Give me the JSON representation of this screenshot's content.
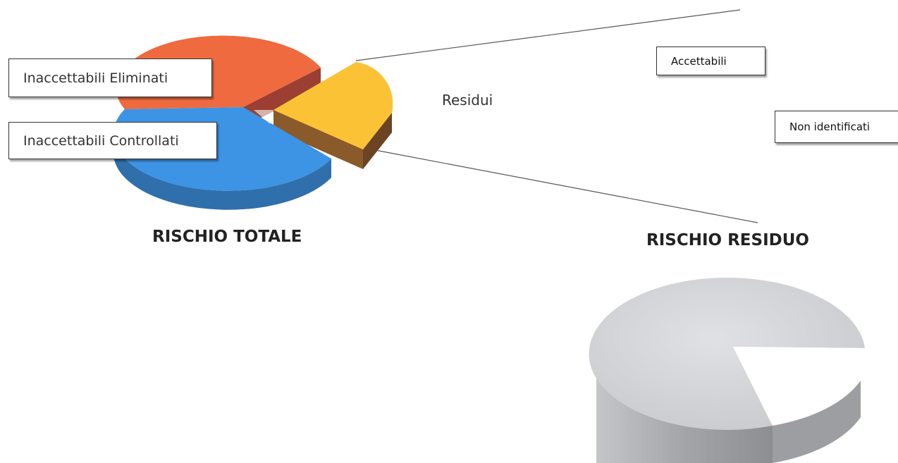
{
  "chart_data": [
    {
      "type": "pie",
      "title": "RISCHIO TOTALE",
      "slices": [
        {
          "label": "Inaccettabili Eliminati",
          "value": 35,
          "color": "#ef6a3e",
          "side_color": "#9a3f32"
        },
        {
          "label": "Residui",
          "value": 27,
          "color": "#fcc235",
          "side_color": "#8a5a2b",
          "exploded": true
        },
        {
          "label": "Inaccettabili Controllati",
          "value": 38,
          "color": "#3d93e4",
          "side_color": "#2f6fab"
        }
      ],
      "threeD": true,
      "connector_to": "RISCHIO RESIDUO"
    },
    {
      "type": "pie",
      "title": "RISCHIO RESIDUO",
      "slices": [
        {
          "label": "Accettabili",
          "value": 86,
          "color": "#d6d8db",
          "side_color": "#a5a7aa"
        },
        {
          "label": "Non identificati",
          "value": 14,
          "color": "#ffffff",
          "side_color": "#ffffff"
        }
      ],
      "threeD": true
    }
  ]
}
